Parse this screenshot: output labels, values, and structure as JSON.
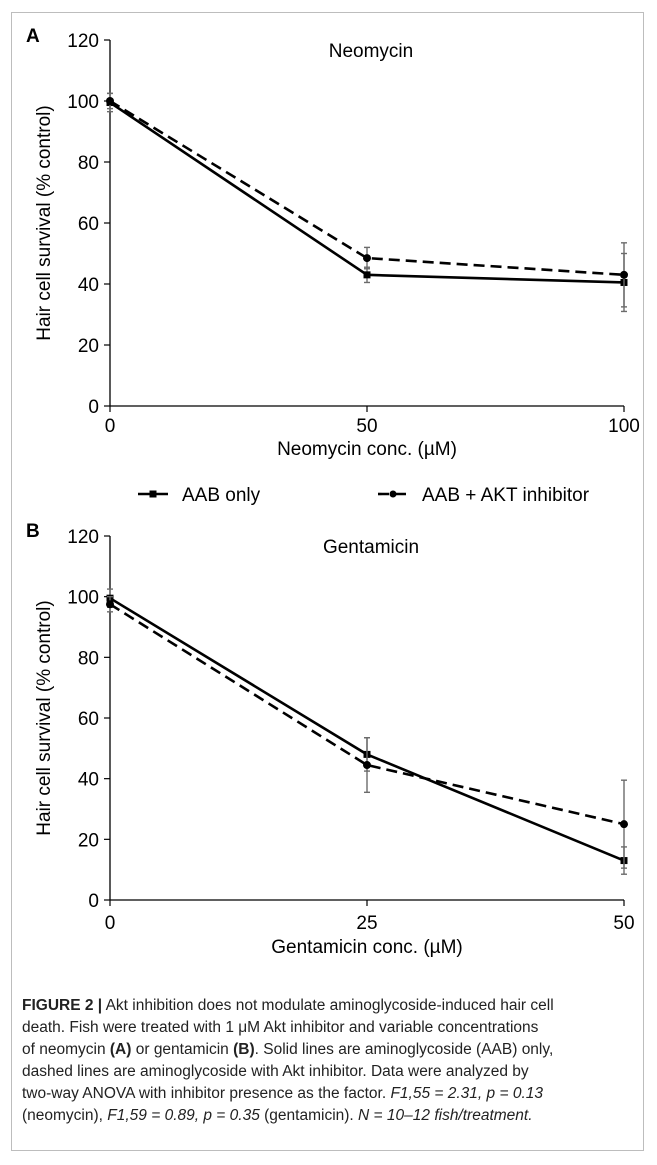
{
  "legend": {
    "items": [
      {
        "label": "AAB only",
        "style": "solid"
      },
      {
        "label": "AAB + AKT inhibitor",
        "style": "dashed"
      }
    ]
  },
  "chart_data": [
    {
      "panel": "A",
      "type": "line",
      "title": "Neomycin",
      "xlabel": "Neomycin conc. (µM)",
      "ylabel": "Hair cell survival (% control)",
      "x": [
        0,
        50,
        100
      ],
      "x_ticks": [
        "0",
        "50",
        "100"
      ],
      "ylim": [
        0,
        120
      ],
      "y_ticks": [
        "0",
        "20",
        "40",
        "60",
        "80",
        "100",
        "120"
      ],
      "grid": false,
      "series": [
        {
          "name": "AAB only",
          "style": "solid",
          "marker": "square",
          "values": [
            99.5,
            43.0,
            40.5
          ],
          "errors": [
            3.0,
            2.5,
            9.5
          ]
        },
        {
          "name": "AAB + AKT inhibitor",
          "style": "dashed",
          "marker": "circle",
          "values": [
            100.0,
            48.5,
            43.0
          ],
          "errors": [
            2.5,
            3.5,
            10.5
          ]
        }
      ]
    },
    {
      "panel": "B",
      "type": "line",
      "title": "Gentamicin",
      "xlabel": "Gentamicin conc. (µM)",
      "ylabel": "Hair cell survival (% control)",
      "x": [
        0,
        25,
        50
      ],
      "x_ticks": [
        "0",
        "25",
        "50"
      ],
      "ylim": [
        0,
        120
      ],
      "y_ticks": [
        "0",
        "20",
        "40",
        "60",
        "80",
        "100",
        "120"
      ],
      "grid": false,
      "series": [
        {
          "name": "AAB only",
          "style": "solid",
          "marker": "square",
          "values": [
            99.5,
            48.0,
            13.0
          ],
          "errors": [
            3.0,
            5.5,
            4.5
          ]
        },
        {
          "name": "AAB + AKT inhibitor",
          "style": "dashed",
          "marker": "circle",
          "values": [
            97.5,
            44.5,
            25.0
          ],
          "errors": [
            2.5,
            9.0,
            14.5
          ]
        }
      ]
    }
  ],
  "caption": {
    "label": "FIGURE 2 |",
    "line1": " Akt inhibition does not modulate aminoglycoside-induced hair cell",
    "line2": "death. Fish were treated with 1 μM Akt inhibitor and variable concentrations",
    "line3a": "of neomycin ",
    "line3b": "(A)",
    "line3c": " or gentamicin ",
    "line3d": "(B)",
    "line3e": ". Solid lines are aminoglycoside (AAB) only,",
    "line4": "dashed lines are aminoglycoside with Akt inhibitor. Data were analyzed by",
    "line5": "two-way ANOVA with inhibitor presence as the factor.",
    "stat1": "F1,55 = 2.31, p = 0.13",
    "line6a": "(neomycin),",
    "stat2": "F1,59 = 0.89, p = 0.35",
    "line6b": "(gentamicin).",
    "stat3": "N = 10–12 fish/treatment."
  }
}
